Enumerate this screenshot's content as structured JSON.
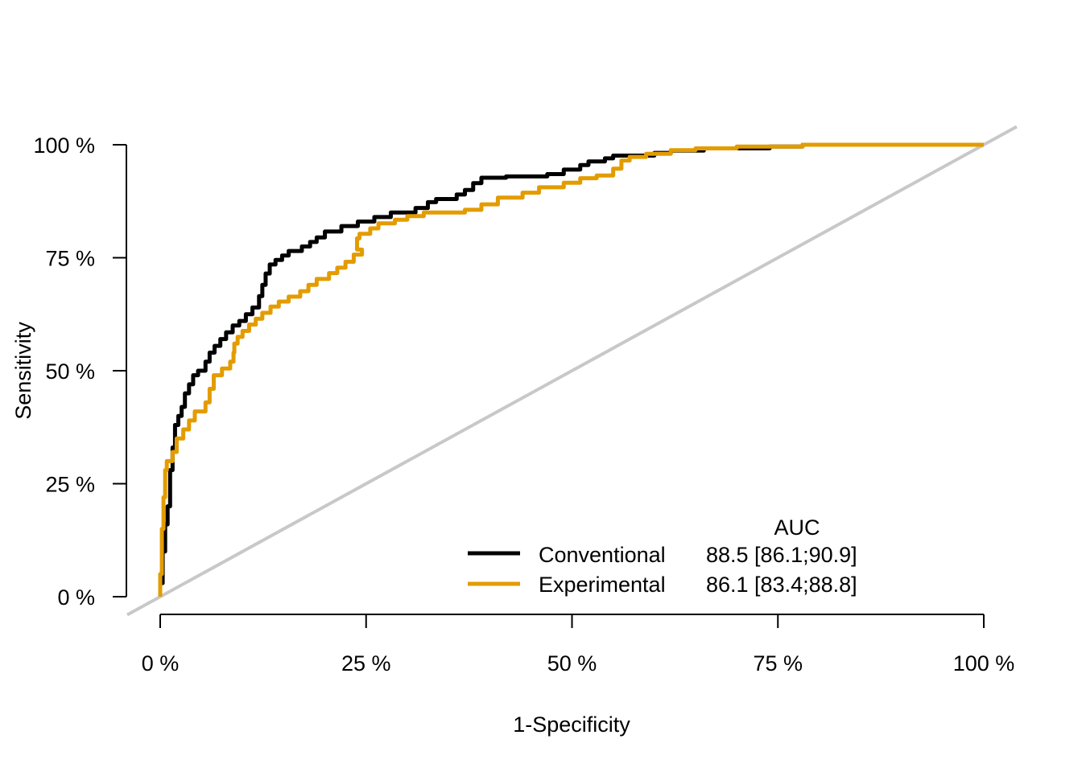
{
  "chart_data": {
    "type": "line",
    "title": "",
    "xlabel": "1-Specificity",
    "ylabel": "Sensitivity",
    "xlim": [
      0,
      100
    ],
    "ylim": [
      0,
      100
    ],
    "x_ticks": [
      0,
      25,
      50,
      75,
      100
    ],
    "y_ticks": [
      0,
      25,
      50,
      75,
      100
    ],
    "x_tick_labels": [
      "0 %",
      "25 %",
      "50 %",
      "75 %",
      "100 %"
    ],
    "y_tick_labels": [
      "0 %",
      "25 %",
      "50 %",
      "75 %",
      "100 %"
    ],
    "grid": false,
    "legend_placement": "bottom-right",
    "legend_header": "AUC",
    "reference_line": {
      "from": [
        0,
        0
      ],
      "to": [
        100,
        100
      ],
      "color": "#c8c8c8"
    },
    "series": [
      {
        "name": "Conventional",
        "auc_label": "88.5 [86.1;90.9]",
        "color": "#000000",
        "points": [
          [
            0,
            0
          ],
          [
            0,
            3
          ],
          [
            0.3,
            3
          ],
          [
            0.3,
            10
          ],
          [
            0.6,
            10
          ],
          [
            0.6,
            16
          ],
          [
            0.9,
            16
          ],
          [
            0.9,
            20
          ],
          [
            1.2,
            20
          ],
          [
            1.2,
            28
          ],
          [
            1.5,
            28
          ],
          [
            1.5,
            33
          ],
          [
            1.8,
            33
          ],
          [
            1.8,
            38
          ],
          [
            2.2,
            38
          ],
          [
            2.2,
            40
          ],
          [
            2.6,
            40
          ],
          [
            2.6,
            42
          ],
          [
            3,
            42
          ],
          [
            3,
            45
          ],
          [
            3.5,
            45
          ],
          [
            3.5,
            47
          ],
          [
            4,
            47
          ],
          [
            4,
            49
          ],
          [
            4.6,
            49
          ],
          [
            4.6,
            50
          ],
          [
            5.5,
            50
          ],
          [
            5.5,
            52
          ],
          [
            6,
            52
          ],
          [
            6,
            54
          ],
          [
            6.6,
            54
          ],
          [
            6.6,
            55.5
          ],
          [
            7.3,
            55.5
          ],
          [
            7.3,
            57
          ],
          [
            8,
            57
          ],
          [
            8,
            58.5
          ],
          [
            8.8,
            58.5
          ],
          [
            8.8,
            60
          ],
          [
            9.6,
            60
          ],
          [
            9.6,
            61
          ],
          [
            10.4,
            61
          ],
          [
            10.4,
            62.5
          ],
          [
            11.2,
            62.5
          ],
          [
            11.2,
            64
          ],
          [
            12,
            64
          ],
          [
            12,
            66.5
          ],
          [
            12.4,
            66.5
          ],
          [
            12.4,
            69
          ],
          [
            12.8,
            69
          ],
          [
            12.8,
            71.5
          ],
          [
            13.3,
            71.5
          ],
          [
            13.3,
            73.5
          ],
          [
            14,
            73.5
          ],
          [
            14,
            74.5
          ],
          [
            14.8,
            74.5
          ],
          [
            14.8,
            75.5
          ],
          [
            15.6,
            75.5
          ],
          [
            15.6,
            76.5
          ],
          [
            17.2,
            76.5
          ],
          [
            17.2,
            77.5
          ],
          [
            18.2,
            77.5
          ],
          [
            18.2,
            78.5
          ],
          [
            19,
            78.5
          ],
          [
            19,
            79.5
          ],
          [
            20,
            79.5
          ],
          [
            20,
            80.8
          ],
          [
            22,
            80.8
          ],
          [
            22,
            82
          ],
          [
            24,
            82
          ],
          [
            24,
            83
          ],
          [
            26,
            83
          ],
          [
            26,
            84
          ],
          [
            28,
            84
          ],
          [
            28,
            85
          ],
          [
            31,
            85
          ],
          [
            31,
            86
          ],
          [
            32.5,
            86
          ],
          [
            32.5,
            87.3
          ],
          [
            33.5,
            87.3
          ],
          [
            33.5,
            88
          ],
          [
            36,
            88
          ],
          [
            36,
            89
          ],
          [
            37,
            89
          ],
          [
            37,
            90
          ],
          [
            38,
            90
          ],
          [
            38,
            91.5
          ],
          [
            39,
            91.5
          ],
          [
            39,
            92.7
          ],
          [
            42,
            92.7
          ],
          [
            42,
            93
          ],
          [
            47,
            93
          ],
          [
            47,
            93.5
          ],
          [
            49,
            93.5
          ],
          [
            49,
            94.5
          ],
          [
            51,
            94.5
          ],
          [
            51,
            95.5
          ],
          [
            52,
            95.5
          ],
          [
            52,
            96.3
          ],
          [
            54,
            96.3
          ],
          [
            54,
            97
          ],
          [
            55,
            97
          ],
          [
            55,
            97.6
          ],
          [
            60,
            97.6
          ],
          [
            60,
            98.2
          ],
          [
            62,
            98.2
          ],
          [
            62,
            98.7
          ],
          [
            66,
            98.7
          ],
          [
            66,
            99.2
          ],
          [
            74,
            99.2
          ],
          [
            74,
            99.6
          ],
          [
            78,
            99.6
          ],
          [
            78,
            100
          ],
          [
            100,
            100
          ]
        ]
      },
      {
        "name": "Experimental",
        "auc_label": "86.1 [83.4;88.8]",
        "color": "#e39c00",
        "points": [
          [
            0,
            0
          ],
          [
            0,
            5
          ],
          [
            0.2,
            5
          ],
          [
            0.2,
            15
          ],
          [
            0.4,
            15
          ],
          [
            0.4,
            22
          ],
          [
            0.6,
            22
          ],
          [
            0.6,
            28
          ],
          [
            0.8,
            28
          ],
          [
            0.8,
            30
          ],
          [
            1.5,
            30
          ],
          [
            1.5,
            32
          ],
          [
            2,
            32
          ],
          [
            2,
            35
          ],
          [
            2.8,
            35
          ],
          [
            2.8,
            37
          ],
          [
            3.5,
            37
          ],
          [
            3.5,
            39
          ],
          [
            4.2,
            39
          ],
          [
            4.2,
            41
          ],
          [
            5.5,
            41
          ],
          [
            5.5,
            43
          ],
          [
            6,
            43
          ],
          [
            6,
            46
          ],
          [
            6.5,
            46
          ],
          [
            6.5,
            49
          ],
          [
            7.5,
            49
          ],
          [
            7.5,
            50.5
          ],
          [
            8.5,
            50.5
          ],
          [
            8.5,
            52
          ],
          [
            8.9,
            52
          ],
          [
            8.9,
            54
          ],
          [
            9,
            54
          ],
          [
            9,
            56
          ],
          [
            9.4,
            56
          ],
          [
            9.4,
            57.5
          ],
          [
            10,
            57.5
          ],
          [
            10,
            58.8
          ],
          [
            10.8,
            58.8
          ],
          [
            10.8,
            60.2
          ],
          [
            11.6,
            60.2
          ],
          [
            11.6,
            61.5
          ],
          [
            12.4,
            61.5
          ],
          [
            12.4,
            62.8
          ],
          [
            13.4,
            62.8
          ],
          [
            13.4,
            64.2
          ],
          [
            14.4,
            64.2
          ],
          [
            14.4,
            65.3
          ],
          [
            15.6,
            65.3
          ],
          [
            15.6,
            66.4
          ],
          [
            17,
            66.4
          ],
          [
            17,
            67.6
          ],
          [
            18,
            67.6
          ],
          [
            18,
            69
          ],
          [
            19,
            69
          ],
          [
            19,
            70.3
          ],
          [
            20.5,
            70.3
          ],
          [
            20.5,
            71.6
          ],
          [
            21.5,
            71.6
          ],
          [
            21.5,
            72.8
          ],
          [
            22.5,
            72.8
          ],
          [
            22.5,
            74.1
          ],
          [
            23.5,
            74.1
          ],
          [
            23.5,
            75.7
          ],
          [
            24.5,
            75.7
          ],
          [
            24.5,
            76.8
          ],
          [
            23.9,
            76.8
          ],
          [
            23.9,
            78.2
          ],
          [
            23.9,
            78.2
          ],
          [
            23.9,
            79.3
          ],
          [
            24.2,
            79.3
          ],
          [
            24.2,
            80.3
          ],
          [
            25.5,
            80.3
          ],
          [
            25.5,
            81.5
          ],
          [
            26.5,
            81.5
          ],
          [
            26.5,
            82.6
          ],
          [
            28.5,
            82.6
          ],
          [
            28.5,
            83.4
          ],
          [
            30,
            83.4
          ],
          [
            30,
            84.2
          ],
          [
            32,
            84.2
          ],
          [
            32,
            85
          ],
          [
            37,
            85
          ],
          [
            37,
            85.6
          ],
          [
            39,
            85.6
          ],
          [
            39,
            86.8
          ],
          [
            41,
            86.8
          ],
          [
            41,
            88.3
          ],
          [
            44,
            88.3
          ],
          [
            44,
            89.4
          ],
          [
            46,
            89.4
          ],
          [
            46,
            90.6
          ],
          [
            49,
            90.6
          ],
          [
            49,
            91.6
          ],
          [
            51,
            91.6
          ],
          [
            51,
            92.6
          ],
          [
            53,
            92.6
          ],
          [
            53,
            93.2
          ],
          [
            55,
            93.2
          ],
          [
            55,
            94.7
          ],
          [
            56,
            94.7
          ],
          [
            56,
            96.5
          ],
          [
            57,
            96.5
          ],
          [
            57,
            97.3
          ],
          [
            59,
            97.3
          ],
          [
            59,
            98
          ],
          [
            62,
            98
          ],
          [
            62,
            98.8
          ],
          [
            65,
            98.8
          ],
          [
            65,
            99.2
          ],
          [
            70,
            99.2
          ],
          [
            70,
            99.6
          ],
          [
            78,
            99.6
          ],
          [
            78,
            100
          ],
          [
            100,
            100
          ]
        ]
      }
    ]
  }
}
